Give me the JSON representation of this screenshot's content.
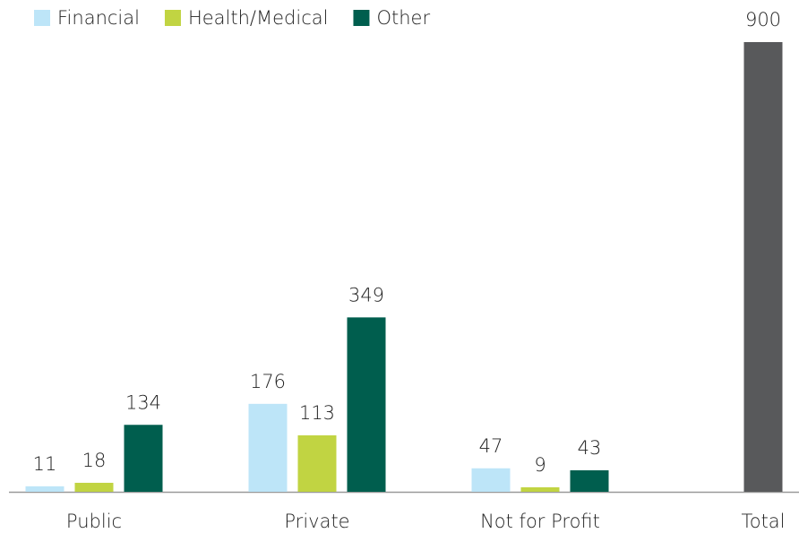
{
  "chart_data": {
    "type": "bar",
    "categories": [
      "Public",
      "Private",
      "Not for Profit",
      "Total"
    ],
    "series": [
      {
        "name": "Financial",
        "color": "#bde5f8",
        "values": [
          11,
          176,
          47,
          null
        ]
      },
      {
        "name": "Health/Medical",
        "color": "#c1d442",
        "values": [
          18,
          113,
          9,
          null
        ]
      },
      {
        "name": "Other",
        "color": "#005e4e",
        "values": [
          134,
          349,
          43,
          null
        ]
      },
      {
        "color": "#58595b",
        "values": [
          null,
          null,
          null,
          900
        ]
      }
    ],
    "ylim": [
      0,
      900
    ]
  }
}
